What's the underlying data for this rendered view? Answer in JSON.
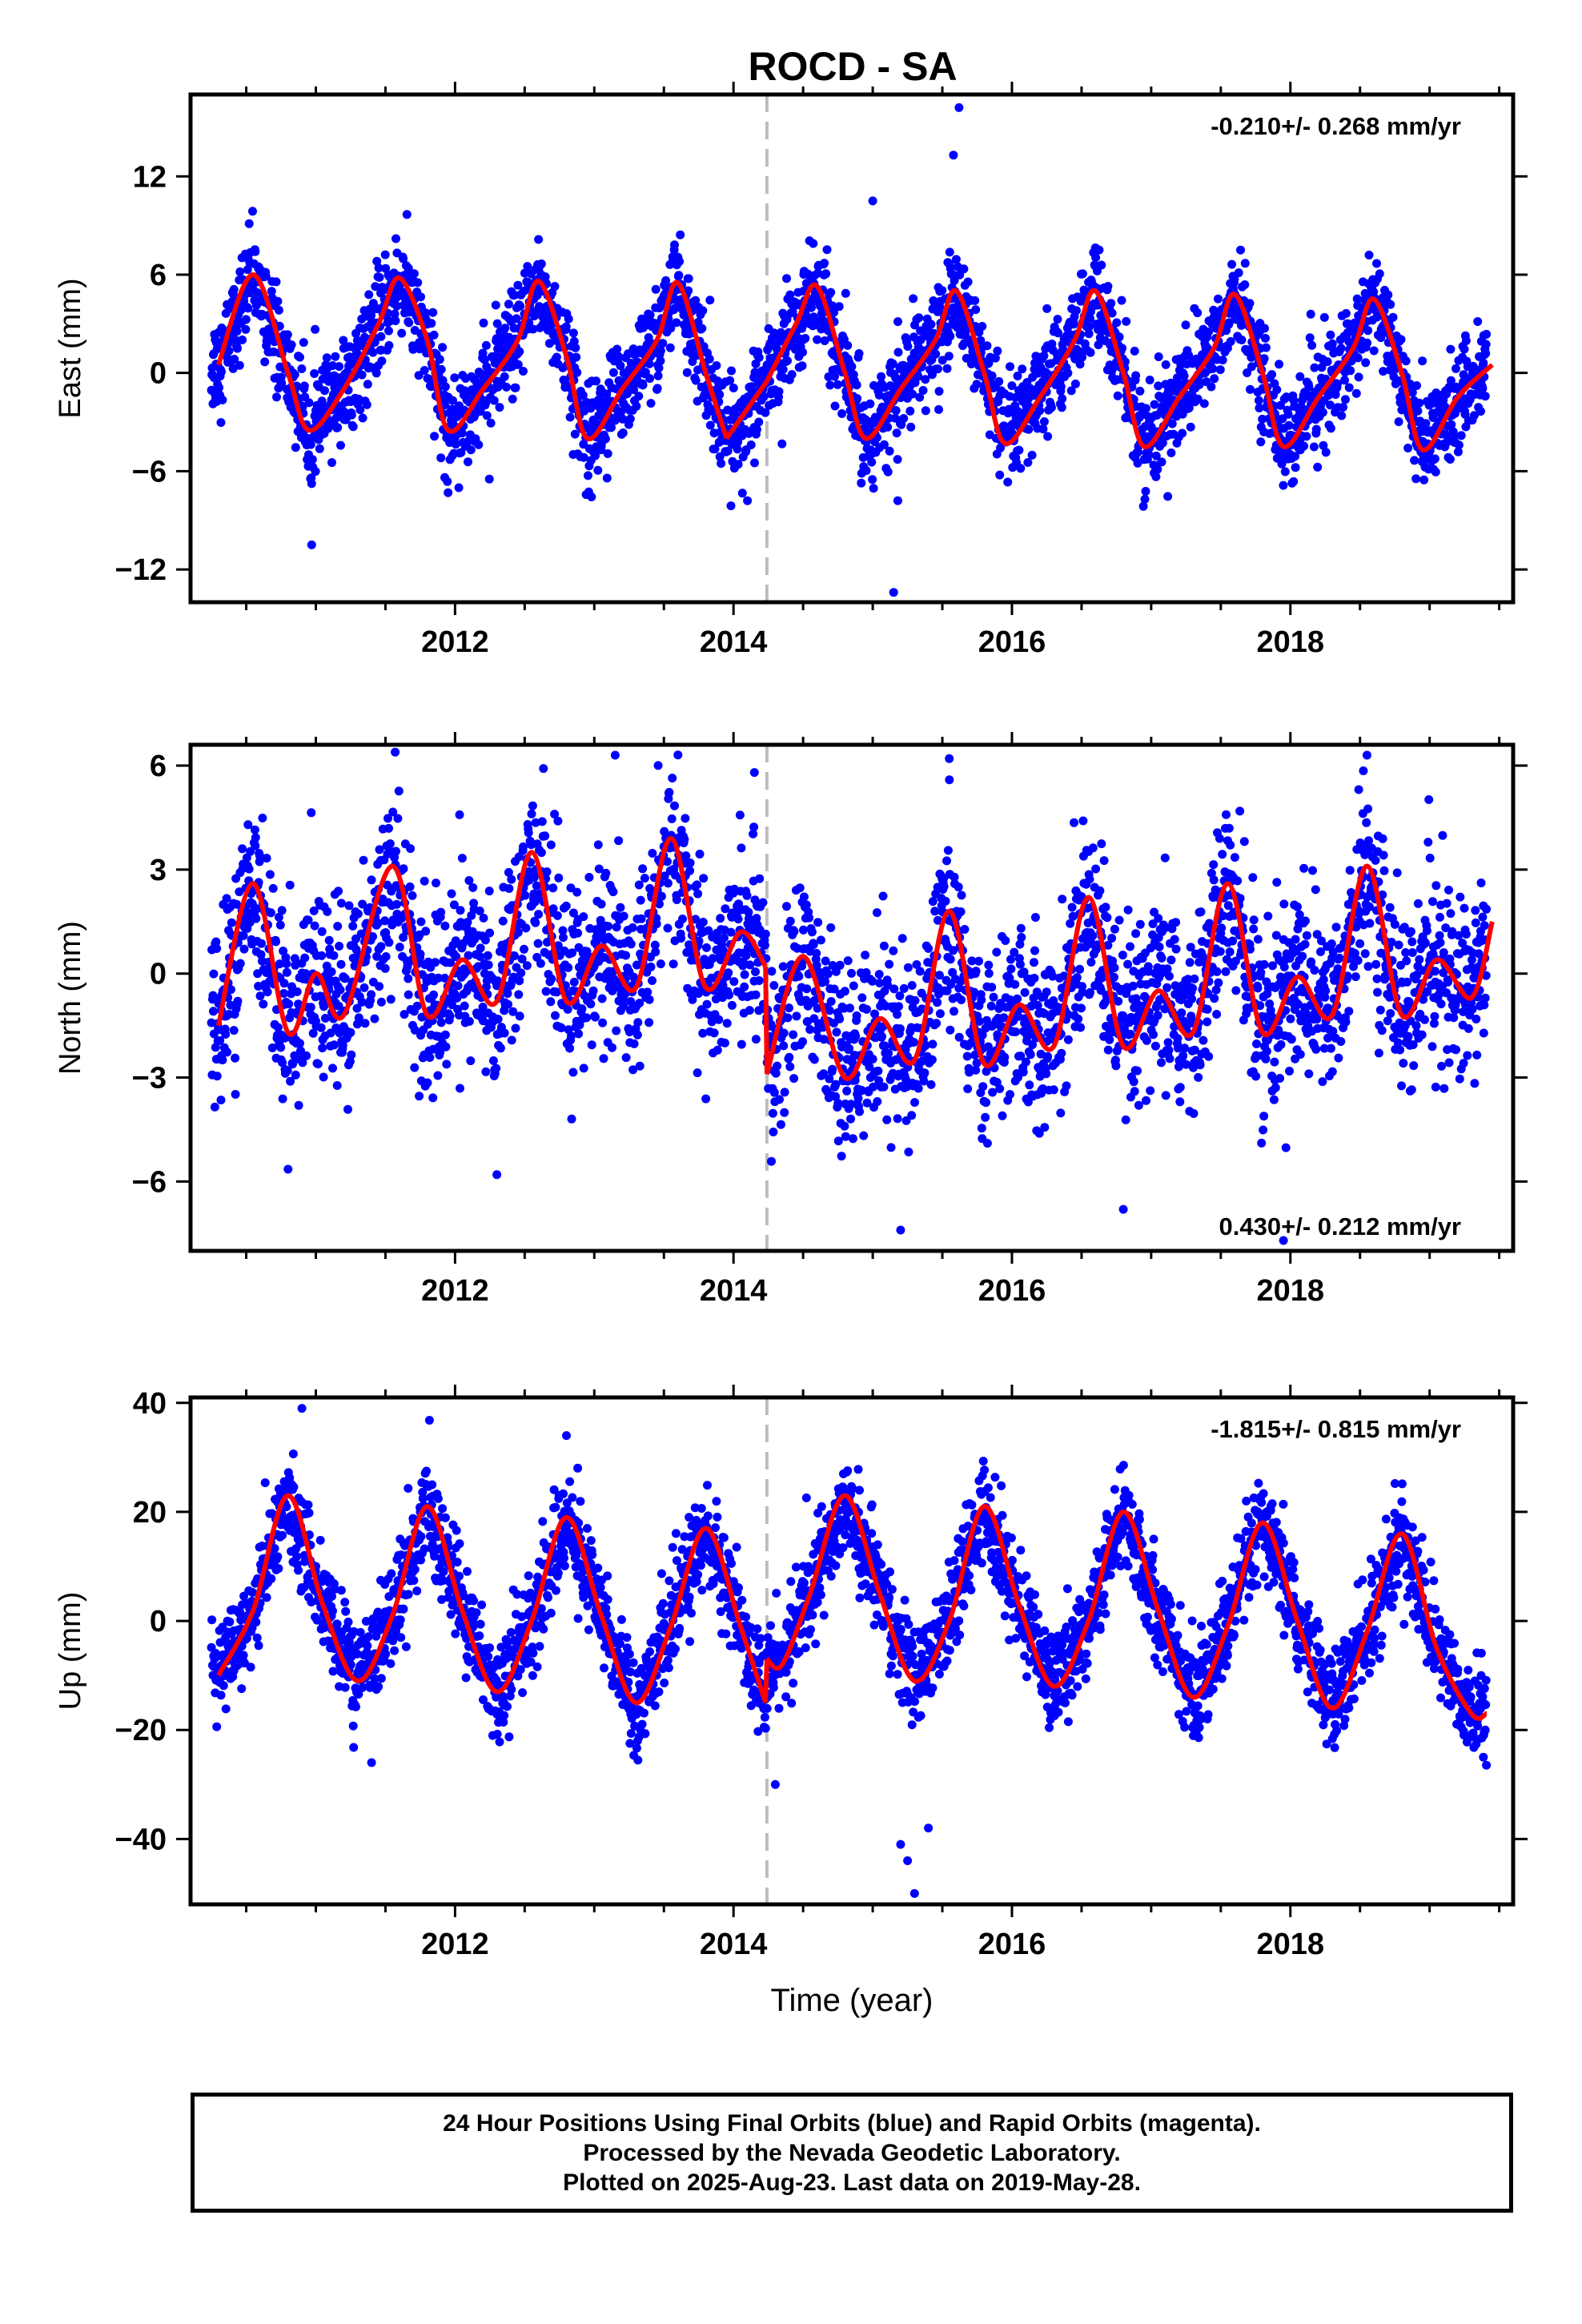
{
  "title": "ROCD - SA",
  "colors": {
    "points": "#0000ff",
    "fit": "#ff0000",
    "break_line": "#bdbdbd",
    "axes": "#000000"
  },
  "chart_data": [
    {
      "type": "scatter",
      "ylabel": "East (mm)",
      "xlabel": "",
      "xlim": [
        2010.1,
        2019.6
      ],
      "ylim": [
        -14,
        17
      ],
      "xticks": [
        2012,
        2014,
        2016,
        2018
      ],
      "yticks": [
        -12,
        -6,
        0,
        6,
        12
      ],
      "annotation": "-0.210+/- 0.268 mm/yr",
      "annotation_position": "top-right",
      "break_year": 2014.24,
      "series": [
        {
          "kind": "points",
          "x_range": [
            2010.25,
            2019.41
          ],
          "seasonal_amplitude": 4.6,
          "noise": 1.5,
          "outliers": [
            [
              2010.97,
              -10.5
            ],
            [
              2015.0,
              10.5
            ],
            [
              2015.15,
              -13.4
            ],
            [
              2015.62,
              16.2
            ],
            [
              2015.58,
              13.3
            ],
            [
              2015.18,
              -7.8
            ],
            [
              2014.1,
              -7.8
            ]
          ]
        },
        {
          "kind": "fit",
          "x": [
            2010.3,
            2010.55,
            2010.8,
            2010.95,
            2011.2,
            2011.45,
            2011.6,
            2011.8,
            2011.95,
            2012.2,
            2012.45,
            2012.6,
            2012.8,
            2012.95,
            2013.2,
            2013.45,
            2013.6,
            2013.8,
            2013.95,
            2014.24,
            2014.45,
            2014.6,
            2014.8,
            2014.95,
            2015.2,
            2015.45,
            2015.6,
            2015.8,
            2015.95,
            2016.2,
            2016.45,
            2016.6,
            2016.8,
            2016.95,
            2017.2,
            2017.45,
            2017.6,
            2017.8,
            2017.95,
            2018.2,
            2018.45,
            2018.6,
            2018.8,
            2018.95,
            2019.2,
            2019.45
          ],
          "y": [
            0.5,
            6,
            0,
            -3.5,
            -1,
            3,
            5.8,
            2,
            -3.5,
            -1,
            2,
            5.6,
            1,
            -4,
            -1,
            2,
            5.5,
            0,
            -4,
            -0.5,
            3,
            5.3,
            0,
            -4,
            -1,
            2,
            5,
            0,
            -4.3,
            -1.5,
            2,
            5,
            0,
            -4.5,
            -1.5,
            1.5,
            4.8,
            0,
            -4.5,
            -1.5,
            1.5,
            4.5,
            0,
            -4.7,
            -1.5,
            0.5
          ]
        }
      ]
    },
    {
      "type": "scatter",
      "ylabel": "North (mm)",
      "xlabel": "",
      "xlim": [
        2010.1,
        2019.6
      ],
      "ylim": [
        -8,
        6.6
      ],
      "xticks": [
        2012,
        2014,
        2016,
        2018
      ],
      "yticks": [
        -6,
        -3,
        0,
        3,
        6
      ],
      "annotation": "0.430+/- 0.212 mm/yr",
      "annotation_position": "bottom-right",
      "break_year": 2014.24,
      "series": [
        {
          "kind": "points",
          "x_range": [
            2010.25,
            2019.41
          ],
          "seasonal_amplitude": 1.6,
          "noise": 1.3,
          "outliers": [
            [
              2012.3,
              -5.8
            ],
            [
              2015.2,
              -7.4
            ],
            [
              2016.8,
              -6.8
            ],
            [
              2017.95,
              -7.7
            ],
            [
              2013.15,
              6.3
            ],
            [
              2015.55,
              6.2
            ],
            [
              2018.55,
              6.3
            ],
            [
              2014.15,
              5.8
            ]
          ]
        },
        {
          "kind": "fit",
          "x": [
            2010.3,
            2010.55,
            2010.8,
            2011.0,
            2011.2,
            2011.55,
            2011.8,
            2012.05,
            2012.3,
            2012.55,
            2012.8,
            2013.05,
            2013.3,
            2013.55,
            2013.8,
            2014.05,
            2014.23,
            2014.24,
            2014.5,
            2014.8,
            2015.05,
            2015.3,
            2015.55,
            2015.8,
            2016.05,
            2016.3,
            2016.55,
            2016.8,
            2017.05,
            2017.3,
            2017.55,
            2017.8,
            2018.05,
            2018.3,
            2018.55,
            2018.8,
            2019.05,
            2019.3,
            2019.45
          ],
          "y": [
            -1.5,
            2.6,
            -1.7,
            0,
            -1.2,
            3.1,
            -1.2,
            0.4,
            -0.8,
            3.5,
            -0.8,
            0.8,
            -0.4,
            3.9,
            -0.4,
            1.2,
            0.2,
            -2.9,
            0.5,
            -3.0,
            -1.3,
            -2.5,
            1.8,
            -2.6,
            -0.9,
            -2.1,
            2.2,
            -2.1,
            -0.5,
            -1.7,
            2.6,
            -1.7,
            -0.1,
            -1.2,
            3.1,
            -1.2,
            0.4,
            -0.7,
            1.5
          ]
        }
      ]
    },
    {
      "type": "scatter",
      "ylabel": "Up (mm)",
      "xlabel": "Time (year)",
      "xlim": [
        2010.1,
        2019.6
      ],
      "ylim": [
        -52,
        41
      ],
      "xticks": [
        2012,
        2014,
        2016,
        2018
      ],
      "yticks": [
        -40,
        -20,
        0,
        20,
        40
      ],
      "annotation": "-1.815+/- 0.815 mm/yr",
      "annotation_position": "top-right",
      "break_year": 2014.24,
      "series": [
        {
          "kind": "points",
          "x_range": [
            2010.25,
            2019.41
          ],
          "seasonal_amplitude": 18,
          "noise": 4.5,
          "outliers": [
            [
              2010.9,
              39
            ],
            [
              2011.4,
              -26
            ],
            [
              2015.3,
              -50
            ],
            [
              2015.25,
              -44
            ],
            [
              2015.4,
              -38
            ],
            [
              2015.2,
              -41
            ],
            [
              2012.8,
              34
            ],
            [
              2014.3,
              -30
            ]
          ]
        },
        {
          "kind": "fit",
          "x": [
            2010.3,
            2010.55,
            2010.8,
            2011.05,
            2011.3,
            2011.55,
            2011.8,
            2012.05,
            2012.3,
            2012.55,
            2012.8,
            2013.05,
            2013.3,
            2013.55,
            2013.8,
            2014.05,
            2014.23,
            2014.24,
            2014.35,
            2014.55,
            2014.8,
            2015.05,
            2015.3,
            2015.55,
            2015.8,
            2016.05,
            2016.3,
            2016.55,
            2016.8,
            2017.05,
            2017.3,
            2017.55,
            2017.8,
            2018.05,
            2018.3,
            2018.55,
            2018.8,
            2019.05,
            2019.3,
            2019.41
          ],
          "y": [
            -10,
            2,
            23,
            3,
            -11,
            1,
            21,
            2,
            -13,
            0,
            19,
            1,
            -15,
            -1,
            17,
            -1,
            -15,
            -7,
            -8,
            5,
            23,
            5,
            -11,
            0,
            21,
            3,
            -12,
            0,
            20,
            2,
            -14,
            -1,
            18,
            0,
            -16,
            -2,
            16,
            -5,
            -17,
            -17
          ]
        }
      ]
    }
  ],
  "caption": {
    "line1": "24 Hour Positions Using Final Orbits (blue) and Rapid Orbits (magenta).",
    "line2": "Processed by the Nevada Geodetic Laboratory.",
    "line3": "Plotted on 2025-Aug-23. Last data on 2019-May-28."
  }
}
